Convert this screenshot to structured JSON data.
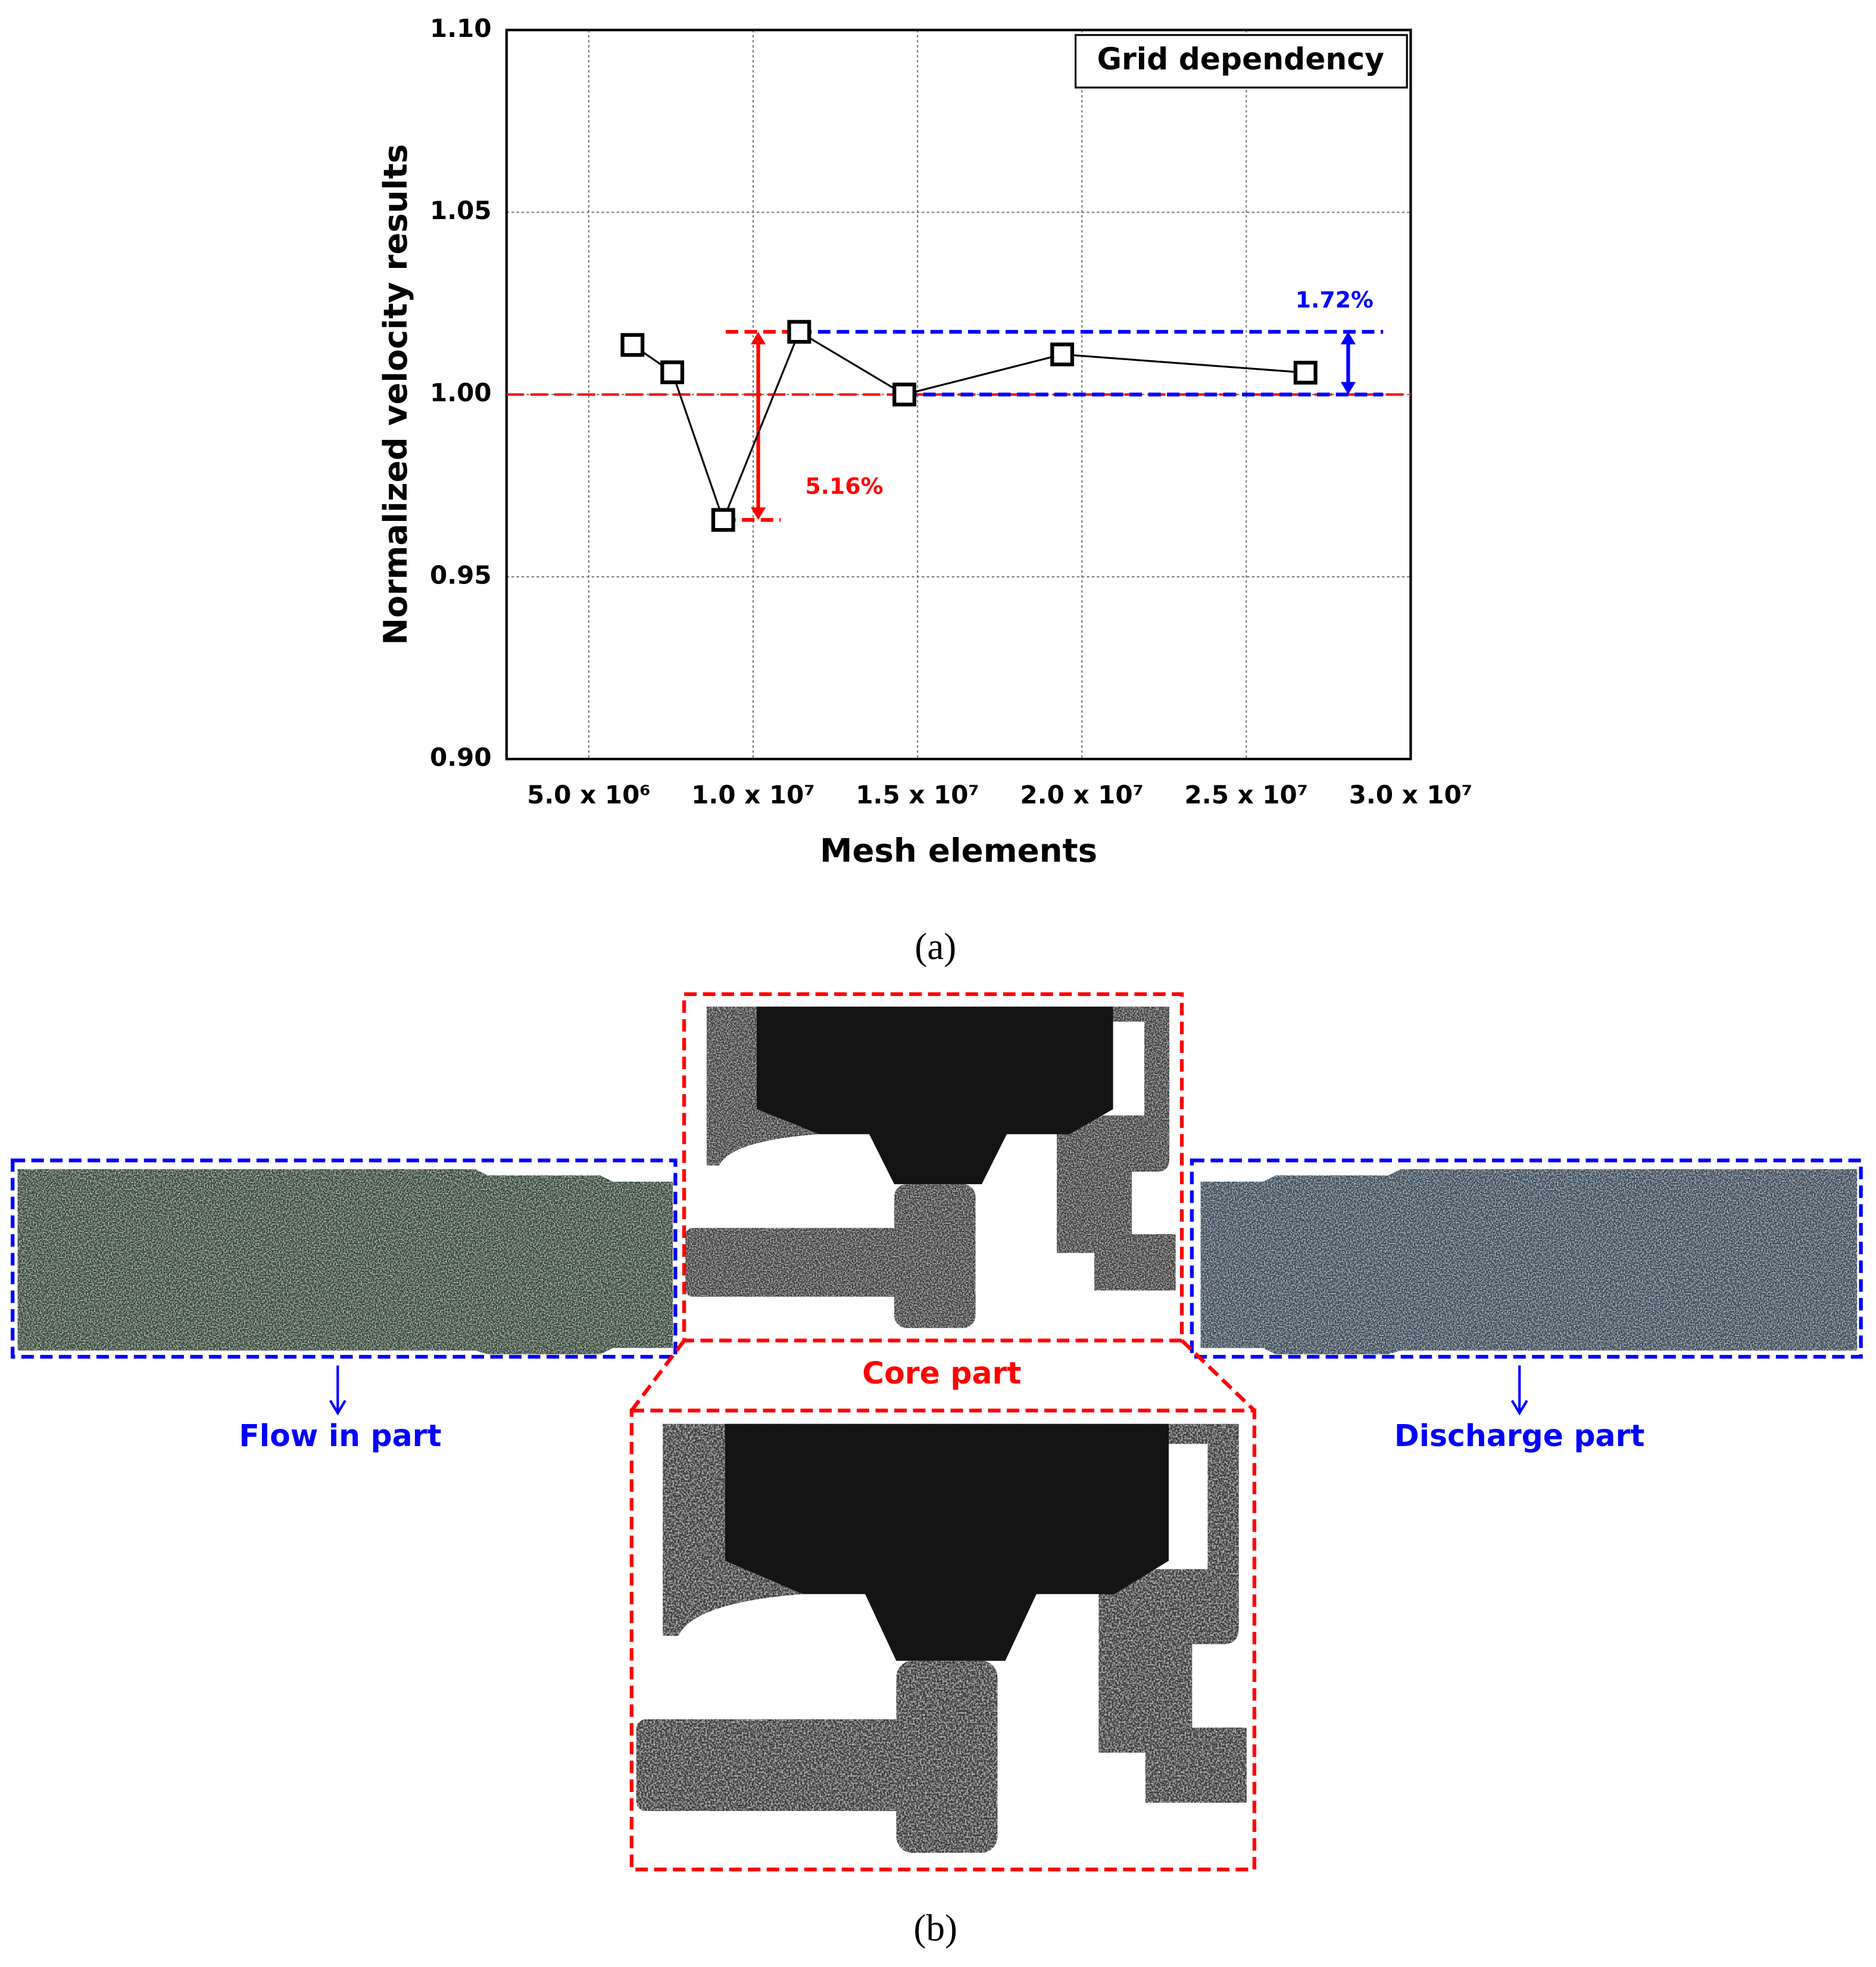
{
  "chart_data": {
    "type": "line",
    "x_label": "Mesh elements",
    "y_label": "Normalized velocity results",
    "legend": "Grid dependency",
    "legend_corner": "upper right",
    "series": [
      {
        "name": "Grid dependency",
        "color": "#000000",
        "x": [
          6330000,
          7540000,
          9090000,
          11400000,
          14600000,
          19400000,
          26800000
        ],
        "values": [
          1.0136,
          1.0061,
          0.9656,
          1.0172,
          1.0,
          1.011,
          1.006
        ]
      }
    ],
    "xlim": [
      2500000,
      30000000
    ],
    "xticks": [
      {
        "value": 5000000,
        "label": "5.0 x 10⁶"
      },
      {
        "value": 10000000,
        "label": "1.0 x 10⁷"
      },
      {
        "value": 15000000,
        "label": "1.5 x 10⁷"
      },
      {
        "value": 20000000,
        "label": "2.0 x 10⁷"
      },
      {
        "value": 25000000,
        "label": "2.5 x 10⁷"
      },
      {
        "value": 30000000,
        "label": "3.0 x 10⁷"
      }
    ],
    "ylim": [
      0.9,
      1.1
    ],
    "yticks": [
      {
        "value": 0.9,
        "label": "0.90"
      },
      {
        "value": 0.95,
        "label": "0.95"
      },
      {
        "value": 1.0,
        "label": "1.00"
      },
      {
        "value": 1.05,
        "label": "1.05"
      },
      {
        "value": 1.1,
        "label": "1.10"
      }
    ],
    "reference_line": 1.0,
    "reference_color": "#ff0000",
    "range_color": "#0000ff",
    "annotations": [
      "5.16%",
      "1.72%"
    ],
    "grid": true
  },
  "panel_labels": [
    "(a)",
    "(b)"
  ],
  "mesh": {
    "core": "Core part",
    "inlet": "Flow in part",
    "outlet": "Discharge part"
  }
}
